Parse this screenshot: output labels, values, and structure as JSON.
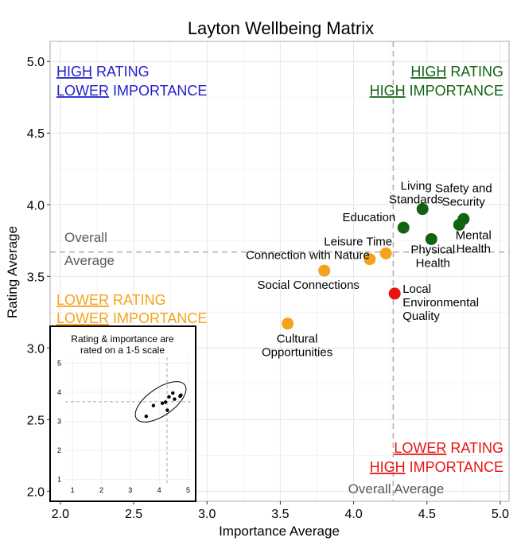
{
  "chart_data": {
    "type": "scatter",
    "title": "Layton Wellbeing Matrix",
    "xlabel": "Importance Average",
    "ylabel": "Rating Average",
    "xlim": [
      1.93,
      5.06
    ],
    "ylim": [
      1.93,
      5.14
    ],
    "x_ticks": [
      "2.0",
      "2.5",
      "3.0",
      "3.5",
      "4.0",
      "4.5",
      "5.0"
    ],
    "x_tick_values": [
      2.0,
      2.5,
      3.0,
      3.5,
      4.0,
      4.5,
      5.0
    ],
    "y_ticks": [
      "2.0",
      "2.5",
      "3.0",
      "3.5",
      "4.0",
      "4.5",
      "5.0"
    ],
    "y_tick_values": [
      2.0,
      2.5,
      3.0,
      3.5,
      4.0,
      4.5,
      5.0
    ],
    "grid": true,
    "reference_lines": {
      "x_value": 4.27,
      "y_value": 3.67,
      "x_label": "Overall Average",
      "y_label_line1": "Overall",
      "y_label_line2": "Average",
      "color": "#b3b3b3"
    },
    "quadrants": {
      "top_left": {
        "line1_u": "HIGH",
        "line1_rest": " RATING",
        "line2_u": "LOWER",
        "line2_rest": " IMPORTANCE",
        "color": "#1f1fcc"
      },
      "top_right": {
        "line1_u": "HIGH",
        "line1_rest": " RATING",
        "line2_u": "HIGH",
        "line2_rest": " IMPORTANCE",
        "color": "#116311"
      },
      "bottom_left": {
        "line1_u": "LOWER",
        "line1_rest": " RATING",
        "line2_u": "LOWER",
        "line2_rest": " IMPORTANCE",
        "color": "#f5a31c"
      },
      "bottom_right": {
        "line1_u": "LOWER",
        "line1_rest": " RATING",
        "line2_u": "HIGH",
        "line2_rest": " IMPORTANCE",
        "color": "#e81414"
      }
    },
    "points": [
      {
        "label_lines": [
          "Living",
          "Standards"
        ],
        "x": 4.47,
        "y": 3.97,
        "color": "#116311",
        "label_anchor": "middle",
        "label_dx": -8,
        "label_dy": -24
      },
      {
        "label_lines": [
          "Education"
        ],
        "x": 4.34,
        "y": 3.84,
        "color": "#116311",
        "label_anchor": "end",
        "label_dx": -10,
        "label_dy": -8
      },
      {
        "label_lines": [
          "Safety and",
          "Security"
        ],
        "x": 4.75,
        "y": 3.9,
        "color": "#116311",
        "label_anchor": "middle",
        "label_dx": 0,
        "label_dy": -34
      },
      {
        "label_lines": [
          "Mental",
          "Health"
        ],
        "x": 4.72,
        "y": 3.86,
        "color": "#116311",
        "label_anchor": "middle",
        "label_dx": 18,
        "label_dy": 18
      },
      {
        "label_lines": [
          "Physical",
          "Health"
        ],
        "x": 4.53,
        "y": 3.76,
        "color": "#116311",
        "label_anchor": "middle",
        "label_dx": 2,
        "label_dy": 18
      },
      {
        "label_lines": [
          "Leisure Time"
        ],
        "x": 4.22,
        "y": 3.66,
        "color": "#f5a31c",
        "label_anchor": "end",
        "label_dx": 8,
        "label_dy": -10
      },
      {
        "label_lines": [
          "Connection with Nature"
        ],
        "x": 4.11,
        "y": 3.62,
        "color": "#f5a31c",
        "label_anchor": "end",
        "label_dx": 0,
        "label_dy": 0
      },
      {
        "label_lines": [
          "Social Connections"
        ],
        "x": 3.8,
        "y": 3.54,
        "color": "#f5a31c",
        "label_anchor": "middle",
        "label_dx": -20,
        "label_dy": 23
      },
      {
        "label_lines": [
          "Cultural",
          "Opportunities"
        ],
        "x": 3.55,
        "y": 3.17,
        "color": "#f5a31c",
        "label_anchor": "middle",
        "label_dx": 12,
        "label_dy": 24
      },
      {
        "label_lines": [
          "Local",
          "Environmental",
          "Quality"
        ],
        "x": 4.28,
        "y": 3.38,
        "color": "#e81414",
        "label_anchor": "start",
        "label_dx": 10,
        "label_dy": -1
      }
    ],
    "inset": {
      "title_line1": "Rating & importance are",
      "title_line2": "rated on a 1-5 scale",
      "xlim": [
        0.75,
        5.15
      ],
      "ylim": [
        0.85,
        5.2
      ],
      "x_ticks": [
        "1",
        "2",
        "3",
        "4",
        "5"
      ],
      "y_ticks": [
        "1",
        "2",
        "3",
        "4",
        "5"
      ],
      "tick_values": [
        1,
        2,
        3,
        4,
        5
      ],
      "ref_x": 4.27,
      "ref_y": 3.67,
      "points": [
        [
          4.47,
          3.97
        ],
        [
          4.34,
          3.84
        ],
        [
          4.75,
          3.9
        ],
        [
          4.72,
          3.86
        ],
        [
          4.53,
          3.76
        ],
        [
          4.22,
          3.66
        ],
        [
          4.11,
          3.62
        ],
        [
          3.8,
          3.54
        ],
        [
          3.55,
          3.17
        ],
        [
          4.28,
          3.38
        ]
      ]
    }
  }
}
